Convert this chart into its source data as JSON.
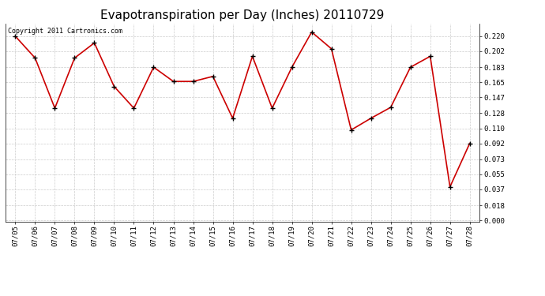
{
  "title": "Evapotranspiration per Day (Inches) 20110729",
  "copyright_text": "Copyright 2011 Cartronics.com",
  "dates": [
    "07/05",
    "07/06",
    "07/07",
    "07/08",
    "07/09",
    "07/10",
    "07/11",
    "07/12",
    "07/13",
    "07/14",
    "07/15",
    "07/16",
    "07/17",
    "07/18",
    "07/19",
    "07/20",
    "07/21",
    "07/22",
    "07/23",
    "07/24",
    "07/25",
    "07/26",
    "07/27",
    "07/28"
  ],
  "values": [
    0.22,
    0.194,
    0.134,
    0.194,
    0.212,
    0.16,
    0.134,
    0.183,
    0.166,
    0.166,
    0.172,
    0.122,
    0.196,
    0.134,
    0.183,
    0.225,
    0.205,
    0.108,
    0.122,
    0.135,
    0.183,
    0.196,
    0.04,
    0.092
  ],
  "line_color": "#cc0000",
  "marker_color": "#cc0000",
  "marker_edge_color": "#000000",
  "bg_color": "#ffffff",
  "grid_color": "#cccccc",
  "yticks": [
    0.0,
    0.018,
    0.037,
    0.055,
    0.073,
    0.092,
    0.11,
    0.128,
    0.147,
    0.165,
    0.183,
    0.202,
    0.22
  ],
  "ylim": [
    -0.002,
    0.235
  ],
  "title_fontsize": 11,
  "tick_fontsize": 6.5,
  "copyright_fontsize": 6
}
